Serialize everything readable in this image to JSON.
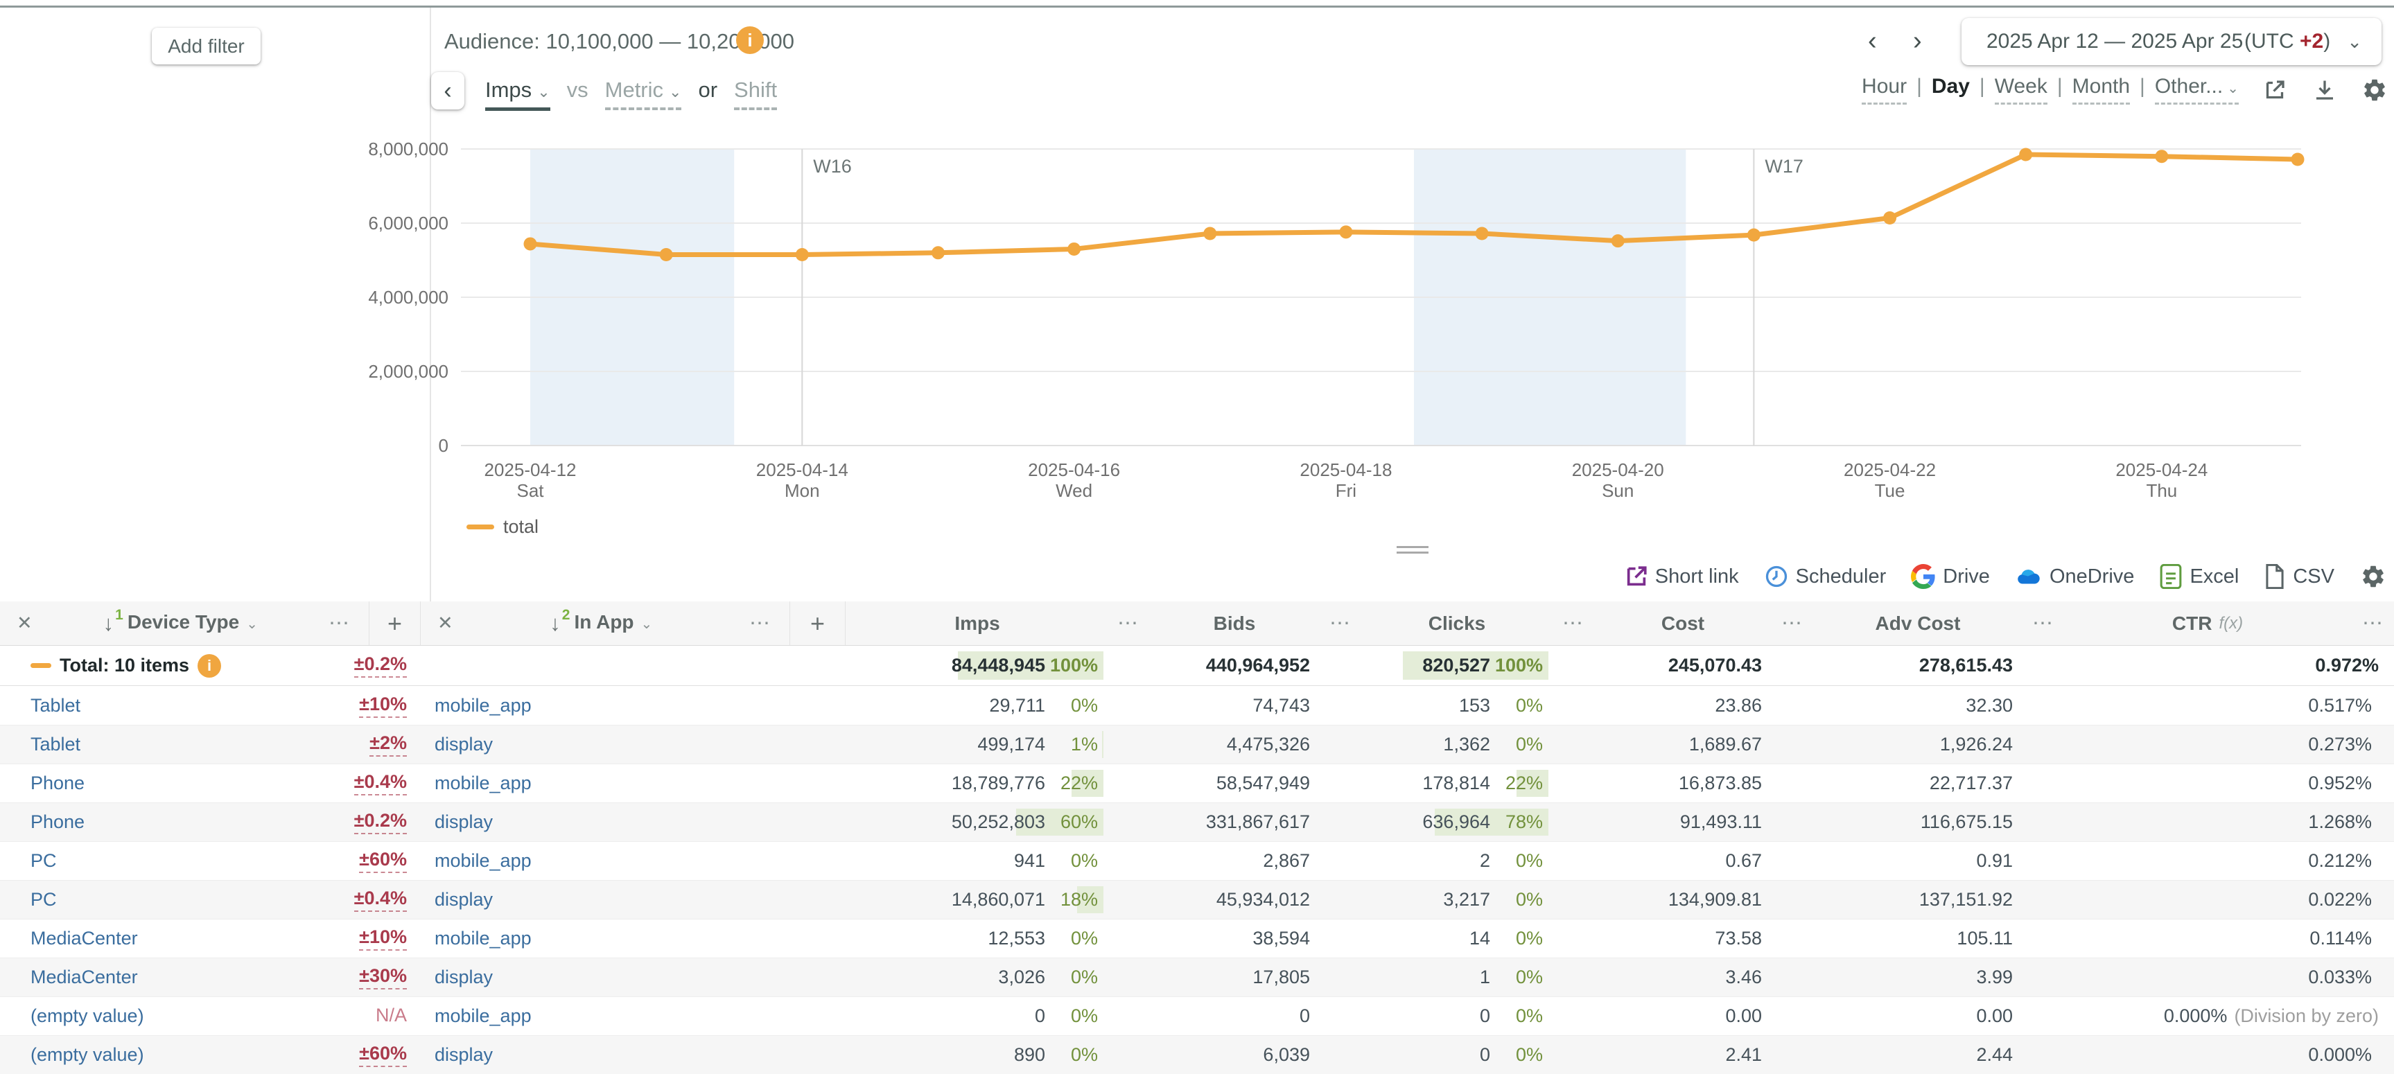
{
  "left_panel": {
    "add_filter": "Add filter"
  },
  "header": {
    "audience_label": "Audience: 10,100,000 — 10,200,000",
    "date_nav": {
      "prev": "‹",
      "next": "›",
      "range": "2025 Apr 12 — 2025 Apr 25",
      "utc_prefix": "(UTC ",
      "utc_value": "+2",
      "utc_suffix": ")",
      "dropdown": "⌄"
    },
    "compare": {
      "back": "‹",
      "primary": "Imps",
      "vs": "vs",
      "metric": "Metric",
      "or": "or",
      "shift": "Shift",
      "chevron": "⌄"
    },
    "granularity": {
      "options": [
        "Hour",
        "Day",
        "Week",
        "Month",
        "Other..."
      ],
      "selected": "Day",
      "separator": "|",
      "chevron": "⌄"
    }
  },
  "chart_data": {
    "type": "line",
    "title": "",
    "xlabel": "",
    "ylabel": "",
    "ylim": [
      0,
      8000000
    ],
    "yticks": [
      0,
      2000000,
      4000000,
      6000000,
      8000000
    ],
    "ytick_labels": [
      "0",
      "2,000,000",
      "4,000,000",
      "6,000,000",
      "8,000,000"
    ],
    "grid": true,
    "legend_position": "bottom-left",
    "series": [
      {
        "name": "total",
        "color": "#f1a73f",
        "x": [
          "2025-04-12",
          "2025-04-13",
          "2025-04-14",
          "2025-04-15",
          "2025-04-16",
          "2025-04-17",
          "2025-04-18",
          "2025-04-19",
          "2025-04-20",
          "2025-04-21",
          "2025-04-22",
          "2025-04-23",
          "2025-04-24",
          "2025-04-25"
        ],
        "values": [
          5440000,
          5150000,
          5150000,
          5200000,
          5300000,
          5720000,
          5760000,
          5720000,
          5520000,
          5680000,
          6140000,
          7850000,
          7800000,
          7720000
        ]
      }
    ],
    "xticks": [
      {
        "day_index": 0,
        "date": "2025-04-12",
        "dow": "Sat"
      },
      {
        "day_index": 2,
        "date": "2025-04-14",
        "dow": "Mon"
      },
      {
        "day_index": 4,
        "date": "2025-04-16",
        "dow": "Wed"
      },
      {
        "day_index": 6,
        "date": "2025-04-18",
        "dow": "Fri"
      },
      {
        "day_index": 8,
        "date": "2025-04-20",
        "dow": "Sun"
      },
      {
        "day_index": 10,
        "date": "2025-04-22",
        "dow": "Tue"
      },
      {
        "day_index": 12,
        "date": "2025-04-24",
        "dow": "Thu"
      }
    ],
    "week_markers": [
      {
        "label": "W16",
        "day_index": 2
      },
      {
        "label": "W17",
        "day_index": 9
      }
    ],
    "weekend_bands": [
      [
        0,
        1.5
      ],
      [
        6.5,
        8.5
      ]
    ],
    "weekend_color": "#e9f1f8"
  },
  "legend": {
    "total": "total"
  },
  "toolbar": {
    "items": [
      "Short link",
      "Scheduler",
      "Drive",
      "OneDrive",
      "Excel",
      "CSV"
    ]
  },
  "colors": {
    "accent_orange": "#f0a640",
    "link_blue": "#3a6d9e",
    "tolerance_red": "#a93a4c",
    "pct_green": "#72913c",
    "pct_bar_bg": "#e4edd8"
  },
  "table": {
    "group_headers": [
      {
        "close": "✕",
        "sort": "↓",
        "order": "1",
        "label": "Device Type",
        "chevron": "⌄",
        "menu": "⋯",
        "add": "+"
      },
      {
        "close": "✕",
        "sort": "↓",
        "order": "2",
        "label": "In App",
        "chevron": "⌄",
        "menu": "⋯",
        "add": "+"
      }
    ],
    "metric_headers": [
      {
        "label": "Imps",
        "menu": "⋯"
      },
      {
        "label": "Bids",
        "menu": "⋯"
      },
      {
        "label": "Clicks",
        "menu": "⋯"
      },
      {
        "label": "Cost",
        "menu": "⋯"
      },
      {
        "label": "Adv Cost",
        "menu": "⋯"
      },
      {
        "label": "CTR",
        "fx": "f(x)",
        "menu": "⋯"
      }
    ],
    "total_row": {
      "label": "Total: 10 items",
      "info": "i",
      "tolerance": "±0.2%",
      "imps": "84,448,945",
      "imps_pct": "100%",
      "bids": "440,964,952",
      "clicks": "820,527",
      "clicks_pct": "100%",
      "cost": "245,070.43",
      "adv_cost": "278,615.43",
      "ctr": "0.972%"
    },
    "rows": [
      {
        "device": "Tablet",
        "tolerance": "±10%",
        "channel": "mobile_app",
        "imps": "29,711",
        "imps_pct": "0%",
        "bids": "74,743",
        "clicks": "153",
        "clicks_pct": "0%",
        "cost": "23.86",
        "adv_cost": "32.30",
        "ctr": "0.517%"
      },
      {
        "device": "Tablet",
        "tolerance": "±2%",
        "channel": "display",
        "imps": "499,174",
        "imps_pct": "1%",
        "bids": "4,475,326",
        "clicks": "1,362",
        "clicks_pct": "0%",
        "cost": "1,689.67",
        "adv_cost": "1,926.24",
        "ctr": "0.273%"
      },
      {
        "device": "Phone",
        "tolerance": "±0.4%",
        "channel": "mobile_app",
        "imps": "18,789,776",
        "imps_pct": "22%",
        "bids": "58,547,949",
        "clicks": "178,814",
        "clicks_pct": "22%",
        "cost": "16,873.85",
        "adv_cost": "22,717.37",
        "ctr": "0.952%"
      },
      {
        "device": "Phone",
        "tolerance": "±0.2%",
        "channel": "display",
        "imps": "50,252,803",
        "imps_pct": "60%",
        "bids": "331,867,617",
        "clicks": "636,964",
        "clicks_pct": "78%",
        "cost": "91,493.11",
        "adv_cost": "116,675.15",
        "ctr": "1.268%"
      },
      {
        "device": "PC",
        "tolerance": "±60%",
        "channel": "mobile_app",
        "imps": "941",
        "imps_pct": "0%",
        "bids": "2,867",
        "clicks": "2",
        "clicks_pct": "0%",
        "cost": "0.67",
        "adv_cost": "0.91",
        "ctr": "0.212%"
      },
      {
        "device": "PC",
        "tolerance": "±0.4%",
        "channel": "display",
        "imps": "14,860,071",
        "imps_pct": "18%",
        "bids": "45,934,012",
        "clicks": "3,217",
        "clicks_pct": "0%",
        "cost": "134,909.81",
        "adv_cost": "137,151.92",
        "ctr": "0.022%"
      },
      {
        "device": "MediaCenter",
        "tolerance": "±10%",
        "channel": "mobile_app",
        "imps": "12,553",
        "imps_pct": "0%",
        "bids": "38,594",
        "clicks": "14",
        "clicks_pct": "0%",
        "cost": "73.58",
        "adv_cost": "105.11",
        "ctr": "0.114%"
      },
      {
        "device": "MediaCenter",
        "tolerance": "±30%",
        "channel": "display",
        "imps": "3,026",
        "imps_pct": "0%",
        "bids": "17,805",
        "clicks": "1",
        "clicks_pct": "0%",
        "cost": "3.46",
        "adv_cost": "3.99",
        "ctr": "0.033%"
      },
      {
        "device": "(empty value)",
        "tolerance": "N/A",
        "channel": "mobile_app",
        "imps": "0",
        "imps_pct": "0%",
        "bids": "0",
        "clicks": "0",
        "clicks_pct": "0%",
        "cost": "0.00",
        "adv_cost": "0.00",
        "ctr": "0.000%",
        "ctr_note": "(Division by zero)"
      },
      {
        "device": "(empty value)",
        "tolerance": "±60%",
        "channel": "display",
        "imps": "890",
        "imps_pct": "0%",
        "bids": "6,039",
        "clicks": "0",
        "clicks_pct": "0%",
        "cost": "2.41",
        "adv_cost": "2.44",
        "ctr": "0.000%"
      }
    ]
  }
}
